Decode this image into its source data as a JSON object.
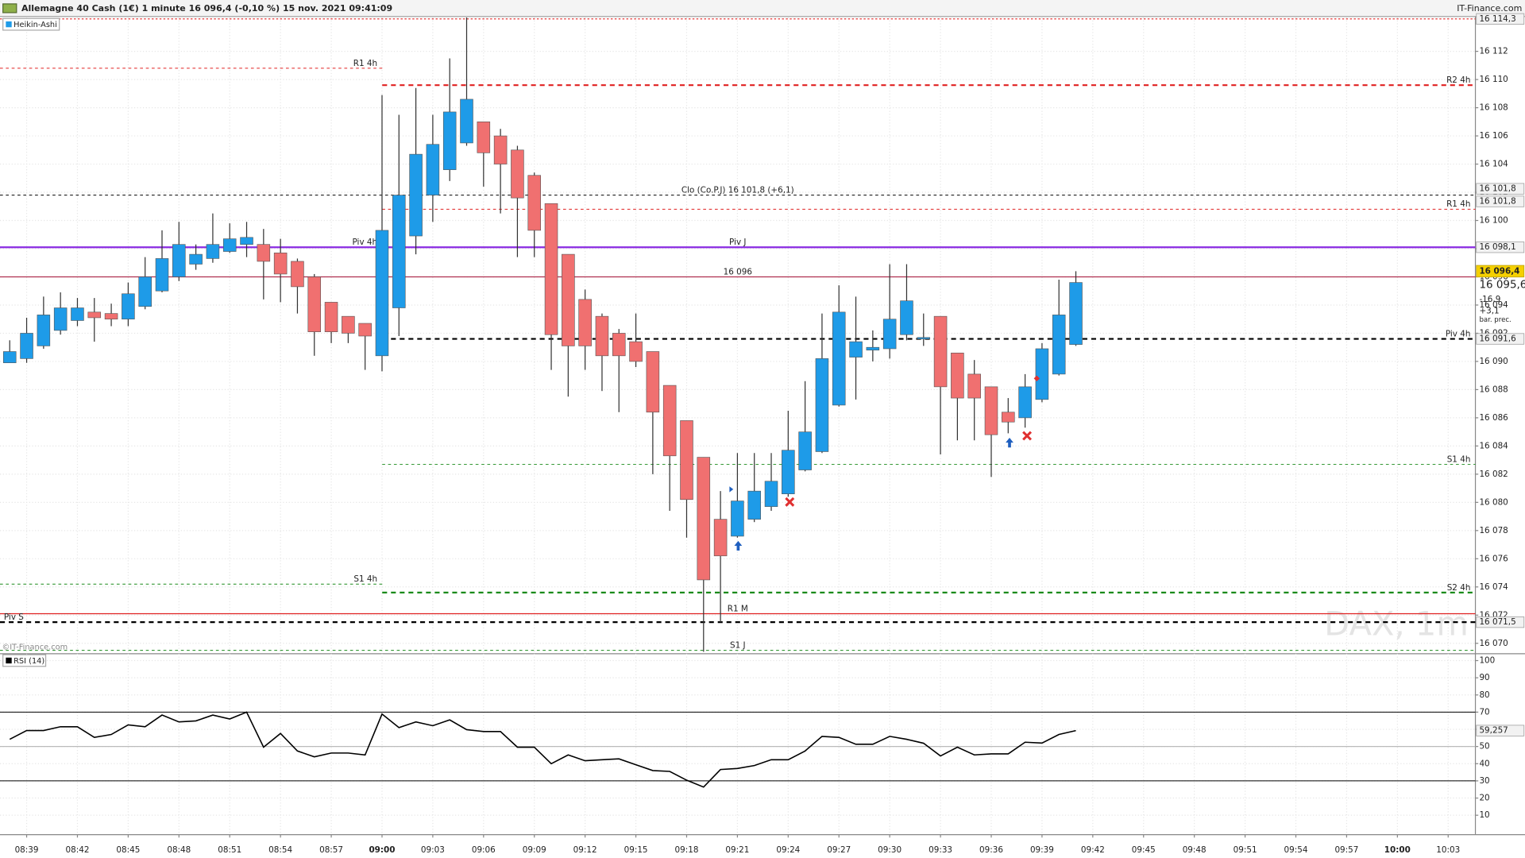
{
  "header": {
    "title": "Allemagne 40 Cash (1€) 1 minute 16 096,4 (-0,10 %) 15 nov. 2021 09:41:09",
    "brand": "IT-Finance.com",
    "copyright": "©IT-Finance.com",
    "watermark": "DAX, 1m"
  },
  "chart_data": [
    {
      "type": "candlestick",
      "name": "Heikin-Ashi",
      "up_color": "#1e9be8",
      "down_color": "#f07070",
      "x": [
        "08:38",
        "08:39",
        "08:40",
        "08:41",
        "08:42",
        "08:43",
        "08:44",
        "08:45",
        "08:46",
        "08:47",
        "08:48",
        "08:49",
        "08:50",
        "08:51",
        "08:52",
        "08:53",
        "08:54",
        "08:55",
        "08:56",
        "08:57",
        "08:58",
        "08:59",
        "09:00",
        "09:01",
        "09:02",
        "09:03",
        "09:04",
        "09:05",
        "09:06",
        "09:07",
        "09:08",
        "09:09",
        "09:10",
        "09:11",
        "09:12",
        "09:13",
        "09:14",
        "09:15",
        "09:16",
        "09:17",
        "09:18",
        "09:19",
        "09:20",
        "09:21",
        "09:22",
        "09:23",
        "09:24",
        "09:25",
        "09:26",
        "09:27",
        "09:28",
        "09:29",
        "09:30",
        "09:31",
        "09:32",
        "09:33",
        "09:34",
        "09:35",
        "09:36",
        "09:37",
        "09:38",
        "09:39",
        "09:40",
        "09:41"
      ],
      "open": [
        16089.9,
        16090.2,
        16091.1,
        16092.2,
        16092.9,
        16093.5,
        16093.4,
        16093.0,
        16093.9,
        16095.0,
        16096.0,
        16096.9,
        16097.3,
        16097.8,
        16098.3,
        16098.3,
        16097.7,
        16097.1,
        16096.0,
        16094.2,
        16093.2,
        16092.7,
        16090.4,
        16093.8,
        16098.9,
        16101.8,
        16103.6,
        16105.5,
        16107.0,
        16106.0,
        16105.0,
        16103.2,
        16101.2,
        16097.6,
        16094.4,
        16093.2,
        16092.0,
        16091.4,
        16090.7,
        16088.3,
        16085.8,
        16083.2,
        16078.8,
        16077.6,
        16078.8,
        16079.7,
        16080.6,
        16082.3,
        16083.6,
        16086.9,
        16090.3,
        16090.8,
        16090.9,
        16091.9,
        16091.6,
        16093.2,
        16090.6,
        16089.1,
        16088.2,
        16086.4,
        16086.0,
        16087.3,
        16089.1,
        16091.2
      ],
      "high": [
        16091.5,
        16093.1,
        16094.6,
        16094.9,
        16094.5,
        16094.5,
        16094.1,
        16095.6,
        16097.4,
        16099.3,
        16099.9,
        16098.3,
        16100.5,
        16099.8,
        16099.9,
        16099.4,
        16098.7,
        16097.3,
        16096.2,
        16094.2,
        16093.2,
        16092.7,
        16108.9,
        16107.5,
        16109.4,
        16107.5,
        16111.5,
        16114.4,
        16107.0,
        16106.5,
        16105.3,
        16103.4,
        16101.2,
        16097.6,
        16095.1,
        16093.4,
        16092.3,
        16093.4,
        16090.7,
        16088.3,
        16085.8,
        16083.2,
        16080.8,
        16083.5,
        16083.5,
        16083.5,
        16086.5,
        16088.6,
        16093.4,
        16095.4,
        16094.6,
        16092.2,
        16096.9,
        16096.9,
        16093.4,
        16093.2,
        16090.6,
        16090.1,
        16088.2,
        16087.4,
        16089.1,
        16091.3,
        16095.8,
        16096.4
      ],
      "low": [
        16089.9,
        16089.9,
        16090.9,
        16091.9,
        16092.5,
        16091.4,
        16092.5,
        16092.5,
        16093.7,
        16094.9,
        16095.7,
        16096.5,
        16097.0,
        16097.7,
        16097.4,
        16094.4,
        16094.2,
        16093.4,
        16090.4,
        16091.3,
        16091.3,
        16089.4,
        16089.3,
        16091.8,
        16097.6,
        16099.9,
        16102.8,
        16105.3,
        16102.4,
        16100.5,
        16097.4,
        16097.4,
        16089.4,
        16087.5,
        16089.4,
        16087.9,
        16086.4,
        16089.6,
        16082.0,
        16079.4,
        16077.5,
        16069.4,
        16071.5,
        16077.5,
        16078.6,
        16079.4,
        16080.4,
        16082.2,
        16083.5,
        16086.8,
        16087.3,
        16090.0,
        16090.2,
        16091.5,
        16091.1,
        16083.4,
        16084.4,
        16084.4,
        16081.8,
        16084.9,
        16085.3,
        16087.1,
        16089.0,
        16091.1
      ],
      "close": [
        16090.7,
        16092.0,
        16093.3,
        16093.8,
        16093.8,
        16093.1,
        16093.0,
        16094.8,
        16096.0,
        16097.3,
        16098.3,
        16097.6,
        16098.3,
        16098.7,
        16098.8,
        16097.1,
        16096.2,
        16095.3,
        16092.1,
        16092.1,
        16092.0,
        16091.8,
        16099.3,
        16101.8,
        16104.7,
        16105.4,
        16107.7,
        16108.6,
        16104.8,
        16104.0,
        16101.6,
        16099.3,
        16091.9,
        16091.1,
        16091.1,
        16090.4,
        16090.4,
        16090.0,
        16086.4,
        16083.3,
        16080.2,
        16074.5,
        16076.2,
        16080.1,
        16080.8,
        16081.5,
        16083.7,
        16085.0,
        16090.2,
        16093.5,
        16091.4,
        16091.0,
        16093.0,
        16094.3,
        16091.7,
        16088.2,
        16087.4,
        16087.4,
        16084.8,
        16085.7,
        16088.2,
        16090.9,
        16093.3,
        16095.6
      ],
      "ylim": [
        16069.4,
        16114.4
      ],
      "yticks": [
        {
          "value": 16070,
          "label": "16 070"
        },
        {
          "value": 16072,
          "label": "16 072"
        },
        {
          "value": 16074,
          "label": "16 074"
        },
        {
          "value": 16076,
          "label": "16 076"
        },
        {
          "value": 16078,
          "label": "16 078"
        },
        {
          "value": 16080,
          "label": "16 080"
        },
        {
          "value": 16082,
          "label": "16 082"
        },
        {
          "value": 16084,
          "label": "16 084"
        },
        {
          "value": 16086,
          "label": "16 086"
        },
        {
          "value": 16088,
          "label": "16 088"
        },
        {
          "value": 16090,
          "label": "16 090"
        },
        {
          "value": 16092,
          "label": "16 092"
        },
        {
          "value": 16094,
          "label": "16 094"
        },
        {
          "value": 16096,
          "label": "16 096"
        },
        {
          "value": 16098,
          "label": "16 098"
        },
        {
          "value": 16100,
          "label": "16 100"
        },
        {
          "value": 16102,
          "label": "16 102"
        },
        {
          "value": 16104,
          "label": "16 104"
        },
        {
          "value": 16106,
          "label": "16 106"
        },
        {
          "value": 16108,
          "label": "16 108"
        },
        {
          "value": 16110,
          "label": "16 110"
        },
        {
          "value": 16112,
          "label": "16 112"
        }
      ],
      "xticks": [
        "08:39",
        "08:42",
        "08:45",
        "08:48",
        "08:51",
        "08:54",
        "08:57",
        "09:00",
        "09:03",
        "09:06",
        "09:09",
        "09:12",
        "09:15",
        "09:18",
        "09:21",
        "09:24",
        "09:27",
        "09:30",
        "09:33",
        "09:36",
        "09:39",
        "09:42",
        "09:45",
        "09:48",
        "09:51",
        "09:54",
        "09:57",
        "10:00",
        "10:03"
      ],
      "last": {
        "value": 16096.4,
        "label": "16 096,4"
      },
      "info": [
        "16 095,6",
        "-16,9",
        "+3,1",
        "bar. prec."
      ],
      "levels": [
        {
          "value": 16114.3,
          "color": "#e02020",
          "style": "dotted",
          "span": "full",
          "tags": [
            "16 114,3"
          ]
        },
        {
          "label": "R1 4h",
          "value": 16110.8,
          "color": "#e02020",
          "style": "dashed",
          "span": "left",
          "align": "end"
        },
        {
          "label": "R2 4h",
          "value": 16109.6,
          "color": "#e02020",
          "style": "bold-dashed",
          "span": "right",
          "align": "end"
        },
        {
          "label": "Clo (Co.P.J) 16 101,8 (+6,1)",
          "value": 16101.8,
          "color": "#000000",
          "style": "dashed",
          "span": "full",
          "align": "middle",
          "tags": [
            "16 101,8",
            "16 101,8"
          ]
        },
        {
          "label": "R1 4h",
          "value": 16100.8,
          "color": "#e02020",
          "style": "dashed",
          "span": "right",
          "align": "end"
        },
        {
          "label": "Piv 4h",
          "value": 16098.1,
          "color": "#000000",
          "style": "dashed",
          "span": "left",
          "align": "end"
        },
        {
          "label": "Piv J",
          "value": 16098.1,
          "color": "#8a2be2",
          "style": "bold-solid",
          "span": "full",
          "align": "middle",
          "tags": [
            "16 098,1"
          ]
        },
        {
          "label": "16 096",
          "value": 16096,
          "color": "#b03050",
          "style": "solid",
          "span": "full",
          "align": "middle"
        },
        {
          "label": "Piv 4h",
          "value": 16091.6,
          "color": "#000000",
          "style": "bold-dashed",
          "span": "right",
          "align": "end",
          "tags": [
            "16 091,6"
          ]
        },
        {
          "label": "S1 4h",
          "value": 16082.7,
          "color": "#1a8a1a",
          "style": "dashed",
          "span": "right",
          "align": "end"
        },
        {
          "label": "S1 4h",
          "value": 16074.2,
          "color": "#1a8a1a",
          "style": "dashed",
          "span": "left",
          "align": "end"
        },
        {
          "label": "S2 4h",
          "value": 16073.6,
          "color": "#1a8a1a",
          "style": "bold-dashed",
          "span": "right",
          "align": "end"
        },
        {
          "label": "R1 M",
          "value": 16072.1,
          "color": "#e02020",
          "style": "solid",
          "span": "full",
          "align": "middle"
        },
        {
          "label": "Piv S",
          "value": 16071.5,
          "color": "#000000",
          "style": "bold-dashed",
          "span": "full",
          "align": "start",
          "tags": [
            "16 071,5"
          ]
        },
        {
          "label": "S1 J",
          "value": 16069.5,
          "color": "#1a8a1a",
          "style": "dashed",
          "span": "full",
          "align": "middle"
        }
      ]
    },
    {
      "type": "line",
      "series": [
        {
          "name": "RSI (14)",
          "color": "#000000",
          "values": [
            54.2,
            59.3,
            59.3,
            61.5,
            61.5,
            55.3,
            57.0,
            62.6,
            61.5,
            68.3,
            64.3,
            64.9,
            68.3,
            66.0,
            70.0,
            49.6,
            57.6,
            47.4,
            44.0,
            46.2,
            46.2,
            45.1,
            68.9,
            61.0,
            64.3,
            62.1,
            65.5,
            59.8,
            58.7,
            58.7,
            49.6,
            49.6,
            40.0,
            45.1,
            41.7,
            42.3,
            42.8,
            39.4,
            36.0,
            35.5,
            30.4,
            26.4,
            36.6,
            37.2,
            38.9,
            42.3,
            42.3,
            47.4,
            55.9,
            55.3,
            51.3,
            51.3,
            55.9,
            54.2,
            51.9,
            44.5,
            49.6,
            45.1,
            45.7,
            45.7,
            52.5,
            52.0,
            57.0,
            59.257
          ],
          "value_labels": [
            null,
            null,
            null,
            null,
            null,
            null,
            null,
            null,
            null,
            null,
            null,
            null,
            null,
            null,
            null,
            null,
            null,
            null,
            null,
            null,
            null,
            null,
            null,
            null,
            null,
            null,
            null,
            null,
            null,
            null,
            null,
            null,
            null,
            null,
            null,
            null,
            null,
            null,
            null,
            null,
            null,
            null,
            null,
            null,
            null,
            null,
            null,
            null,
            null,
            null,
            null,
            null,
            null,
            null,
            null,
            null,
            null,
            null,
            null,
            null,
            null,
            null,
            null,
            "59,257"
          ]
        }
      ],
      "ylim": [
        -1.3,
        104
      ],
      "yticks": [
        10,
        20,
        30,
        40,
        50,
        60,
        70,
        80,
        90,
        100
      ],
      "levels": [
        70,
        50,
        30
      ]
    }
  ]
}
